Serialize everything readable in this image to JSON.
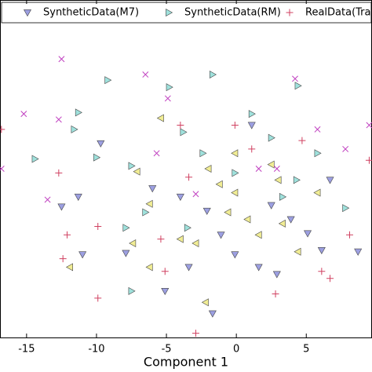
{
  "chart_data": {
    "type": "scatter",
    "x_label": "Component 1",
    "xlim": [
      -16.9,
      9.7
    ],
    "ylim": [
      -12,
      12
    ],
    "xticks": [
      -15,
      -10,
      -5,
      0,
      5
    ],
    "series": [
      {
        "name": "SyntheticData(M7)",
        "color": "#4a50c8",
        "marker": "v",
        "x": [
          -9.7,
          -11.3,
          -12.5,
          -7.9,
          -5.1,
          -3.4,
          -2.1,
          -0.1,
          1.1,
          2.9,
          5.1,
          2.5,
          6.1,
          6.7,
          -4.0,
          -6.0,
          -1.1,
          3.9,
          1.6,
          -1.7,
          8.7,
          -11.0
        ],
        "y": [
          1.8,
          -2.0,
          -2.7,
          -6.0,
          -8.7,
          -7.0,
          -3.0,
          -6.1,
          3.1,
          -7.5,
          -4.6,
          -2.6,
          -5.8,
          -0.8,
          -2.0,
          -1.4,
          -4.7,
          -3.6,
          -7.0,
          -10.3,
          -5.9,
          -6.1
        ]
      },
      {
        "name": "SyntheticData(RM)",
        "color": "#50c8c0",
        "marker": ">",
        "x": [
          -9.2,
          -4.8,
          -1.7,
          -11.3,
          -11.6,
          -14.4,
          -7.5,
          -3.8,
          -2.4,
          1.1,
          4.4,
          5.8,
          2.5,
          -7.9,
          -7.5,
          -6.5,
          -3.5,
          -0.1,
          3.3,
          7.8,
          4.3,
          -10.0
        ],
        "y": [
          6.3,
          5.8,
          6.7,
          4.0,
          2.8,
          0.7,
          0.2,
          2.6,
          1.1,
          3.9,
          5.9,
          1.1,
          2.2,
          -4.2,
          -8.7,
          -3.1,
          -4.2,
          -0.3,
          -2.0,
          -2.8,
          -0.8,
          0.8
        ]
      },
      {
        "name": "RealData(Tra",
        "color": "#d04060",
        "marker": "+",
        "x": [
          -16.8,
          -12.7,
          -9.9,
          -12.1,
          -5.1,
          -0.1,
          2.8,
          6.7,
          -3.4,
          1.1,
          4.7,
          -4.0,
          6.1,
          -12.4,
          -9.9,
          -5.4,
          8.1,
          -2.9,
          9.5
        ],
        "y": [
          2.8,
          -0.3,
          -9.2,
          -4.7,
          -7.3,
          3.1,
          -8.9,
          -7.8,
          -0.6,
          1.4,
          2.0,
          3.1,
          -7.3,
          -6.4,
          -4.1,
          -5.0,
          -4.7,
          -11.7,
          0.6
        ]
      },
      {
        "color": "#e6de3c",
        "marker": "<",
        "x": [
          -7.1,
          -6.2,
          -5.4,
          -4.0,
          -2.2,
          -1.2,
          -0.1,
          0.8,
          1.6,
          2.5,
          3.3,
          4.4,
          5.8,
          -7.4,
          -6.2,
          -2.9,
          -0.1,
          -0.6,
          -2.0,
          3.0,
          -11.9
        ],
        "y": [
          -0.2,
          -2.5,
          3.6,
          -5.0,
          -9.5,
          -1.1,
          -1.7,
          -3.6,
          -4.7,
          0.3,
          -3.9,
          -5.9,
          -1.7,
          -5.3,
          -7.0,
          -5.3,
          1.1,
          -3.1,
          0.0,
          -0.8,
          -7.0
        ]
      },
      {
        "color": "#c040c0",
        "marker": "x",
        "x": [
          -12.5,
          -15.2,
          -12.7,
          -6.5,
          2.9,
          -16.8,
          -13.5,
          4.2,
          9.5,
          -5.7,
          1.6,
          -2.9,
          5.8,
          7.8,
          -4.9
        ],
        "y": [
          7.8,
          3.9,
          3.5,
          6.7,
          0.0,
          0.0,
          -2.2,
          6.4,
          3.1,
          1.1,
          0.0,
          -1.8,
          2.8,
          1.4,
          5.0
        ]
      }
    ]
  }
}
